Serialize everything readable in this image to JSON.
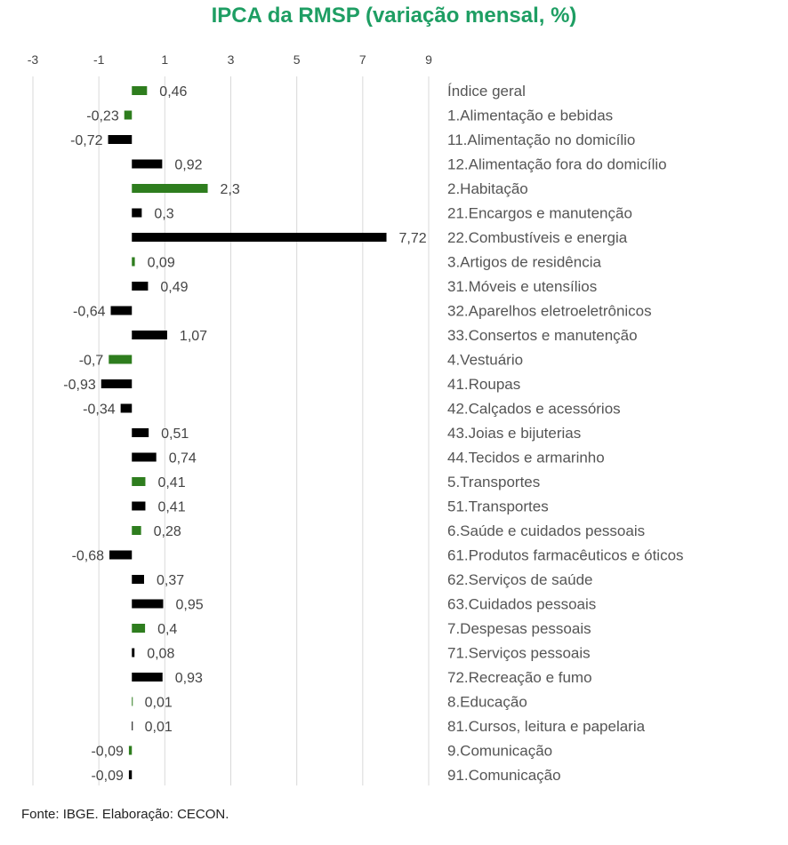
{
  "chart_data": {
    "type": "bar",
    "orientation": "horizontal",
    "title": "IPCA da RMSP (variação mensal, %)",
    "xlim": [
      -3,
      9
    ],
    "xticks": [
      "-3",
      "-1",
      "1",
      "3",
      "5",
      "7",
      "9"
    ],
    "grid": "vertical",
    "source": "Fonte: IBGE. Elaboração: CECON.",
    "colors": {
      "group": "#2e7d1e",
      "subgroup": "#000000",
      "grid": "#d9d9d9"
    },
    "categories": [
      "Índice geral",
      "1.Alimentação e bebidas",
      "11.Alimentação no domicílio",
      "12.Alimentação fora do domicílio",
      "2.Habitação",
      "21.Encargos e manutenção",
      "22.Combustíveis e energia",
      "3.Artigos de residência",
      "31.Móveis e utensílios",
      "32.Aparelhos eletroeletrônicos",
      "33.Consertos e manutenção",
      "4.Vestuário",
      "41.Roupas",
      "42.Calçados e acessórios",
      "43.Joias e bijuterias",
      "44.Tecidos e armarinho",
      "5.Transportes",
      "51.Transportes",
      "6.Saúde e cuidados pessoais",
      "61.Produtos farmacêuticos e óticos",
      "62.Serviços de saúde",
      "63.Cuidados pessoais",
      "7.Despesas pessoais",
      "71.Serviços pessoais",
      "72.Recreação e fumo",
      "8.Educação",
      "81.Cursos, leitura e papelaria",
      "9.Comunicação",
      "91.Comunicação"
    ],
    "values": [
      0.46,
      -0.23,
      -0.72,
      0.92,
      2.3,
      0.3,
      7.72,
      0.09,
      0.49,
      -0.64,
      1.07,
      -0.7,
      -0.93,
      -0.34,
      0.51,
      0.74,
      0.41,
      0.41,
      0.28,
      -0.68,
      0.37,
      0.95,
      0.4,
      0.08,
      0.93,
      0.01,
      0.01,
      -0.09,
      -0.09
    ],
    "value_labels": [
      "0,46",
      "-0,23",
      "-0,72",
      "0,92",
      "2,3",
      "0,3",
      "7,72",
      "0,09",
      "0,49",
      "-0,64",
      "1,07",
      "-0,7",
      "-0,93",
      "-0,34",
      "0,51",
      "0,74",
      "0,41",
      "0,41",
      "0,28",
      "-0,68",
      "0,37",
      "0,95",
      "0,4",
      "0,08",
      "0,93",
      "0,01",
      "0,01",
      "-0,09",
      "-0,09"
    ],
    "is_group": [
      true,
      true,
      false,
      false,
      true,
      false,
      false,
      true,
      false,
      false,
      false,
      true,
      false,
      false,
      false,
      false,
      true,
      false,
      true,
      false,
      false,
      false,
      true,
      false,
      false,
      true,
      false,
      true,
      false
    ]
  }
}
